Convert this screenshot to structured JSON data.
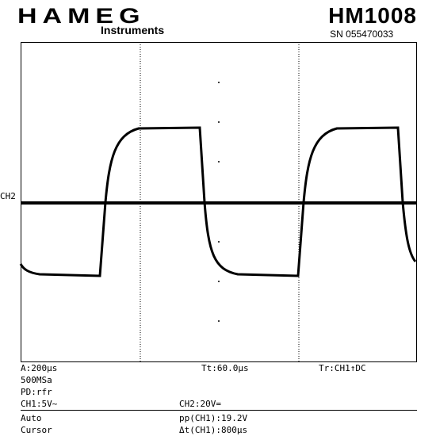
{
  "header": {
    "brand": "HAMEG",
    "brand_sub": "Instruments",
    "model": "HM1008",
    "serial": "SN  055470033"
  },
  "screen": {
    "ch2_marker": "CH2"
  },
  "readout": {
    "timebase": "A:200µs",
    "sample_rate": "500MSa",
    "mode": "PD:rfr",
    "trigger_time": "Tt:60.0µs",
    "trigger": "Tr:CH1↑DC",
    "ch1": "CH1:5V~",
    "ch2": "CH2:20V="
  },
  "footer": {
    "auto": "Auto",
    "cursor": "Cursor",
    "measure_pp": "pp(CH1):19.2V",
    "measure_dt": "Δt(CH1):800µs"
  },
  "colors": {
    "background": "#ffffff",
    "trace": "#000000",
    "grid": "#000000"
  }
}
